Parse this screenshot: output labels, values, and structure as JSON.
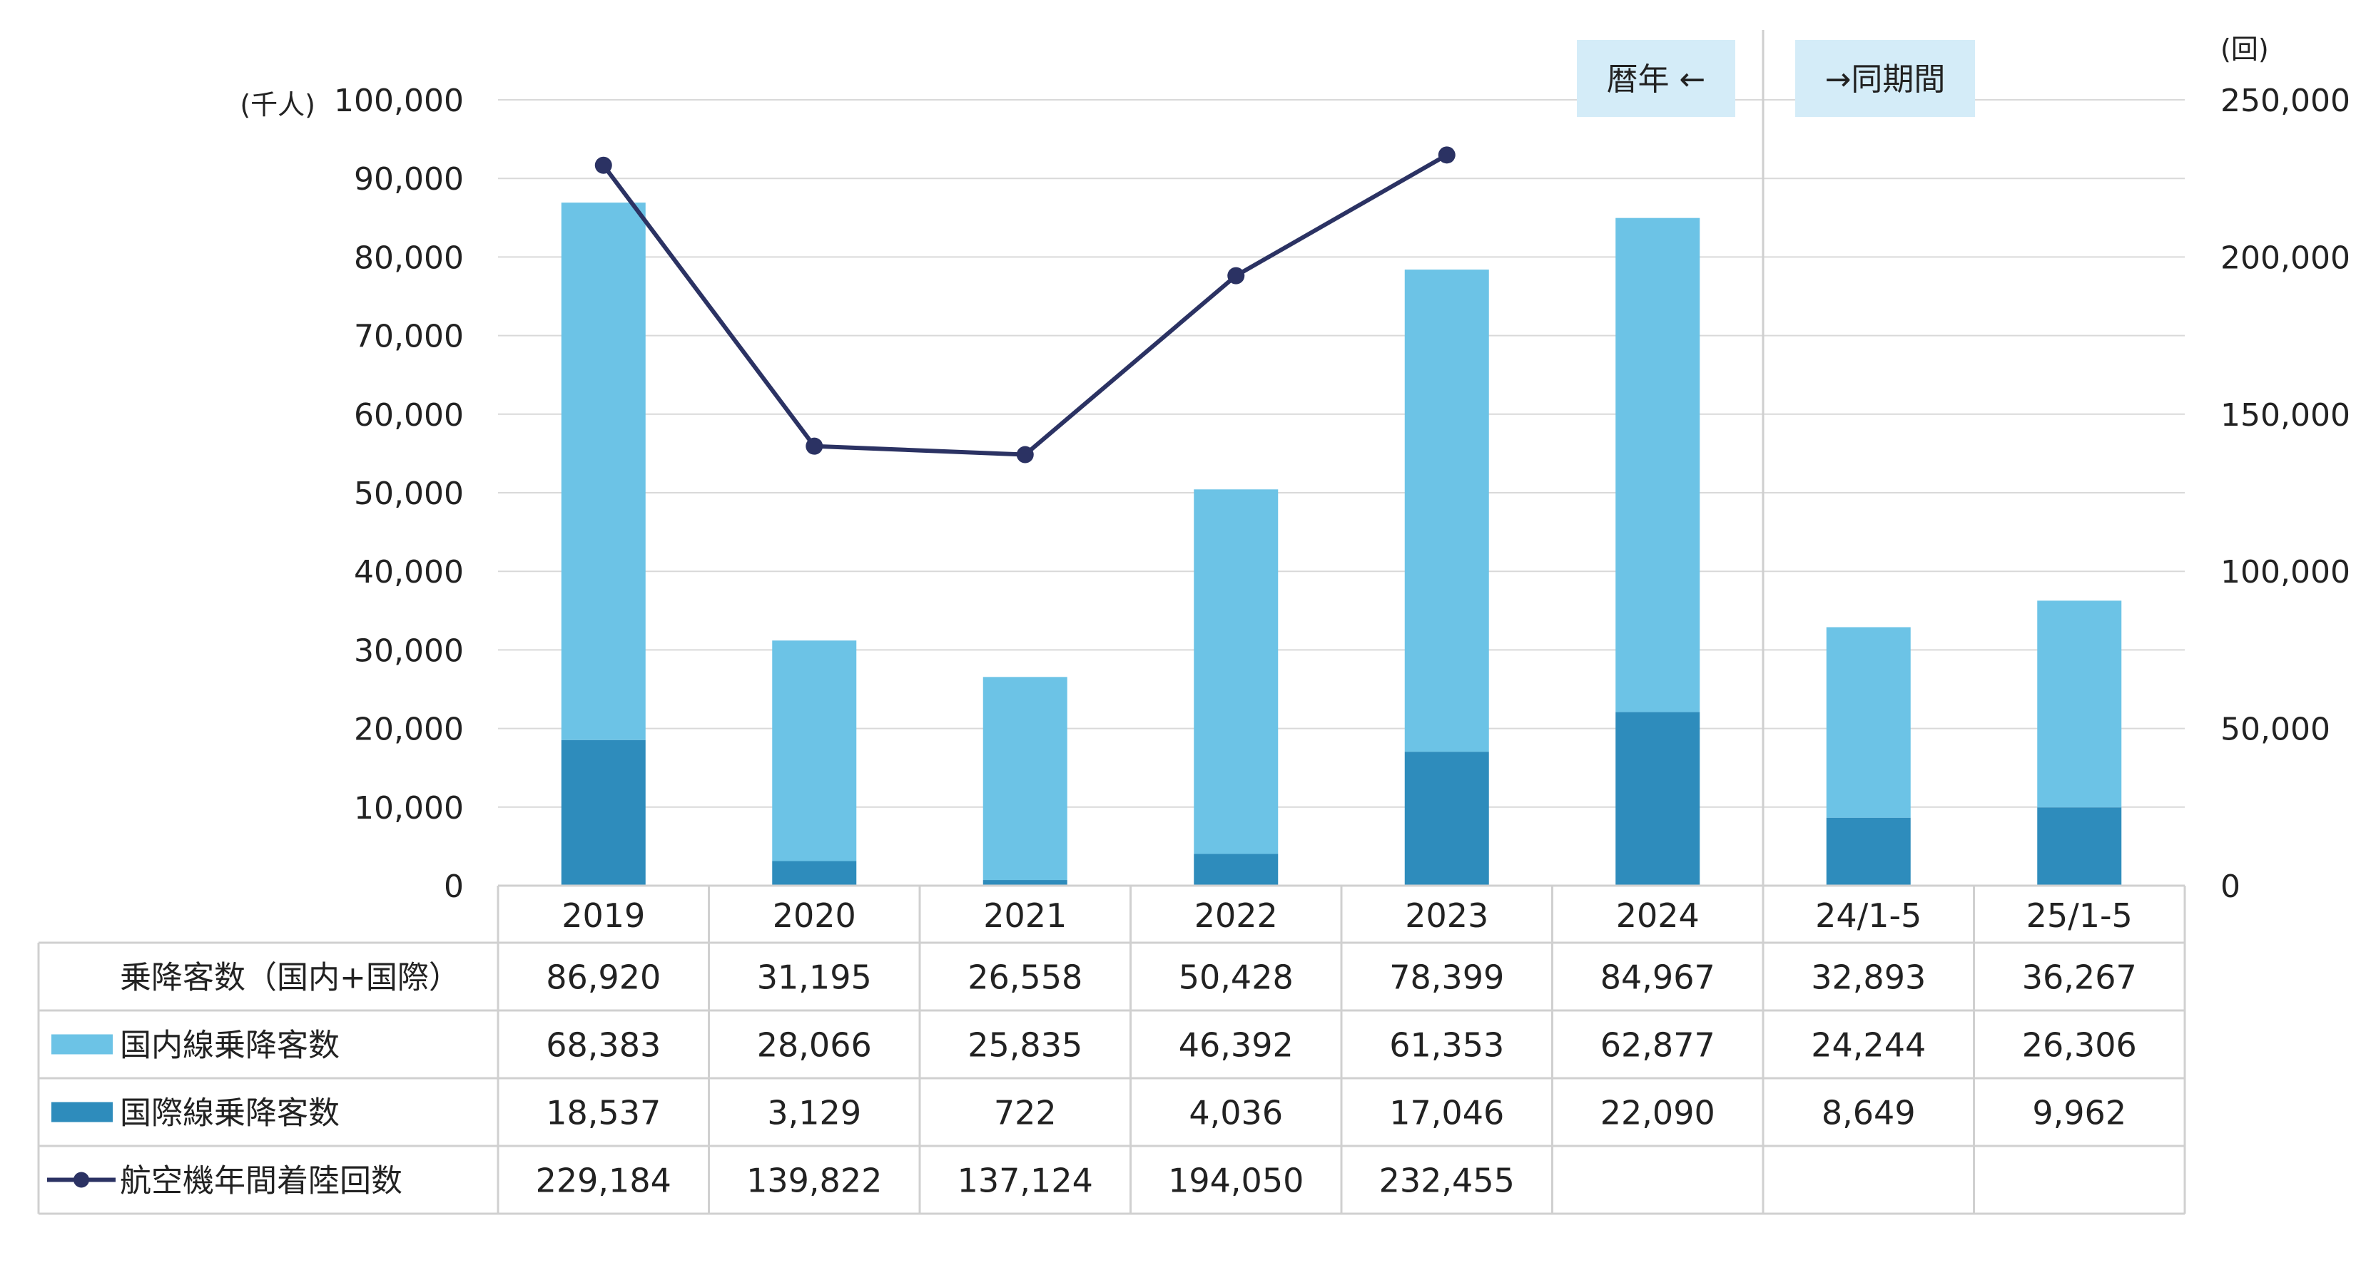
{
  "chart_data": {
    "type": "bar",
    "stacked": true,
    "categories": [
      "2019",
      "2020",
      "2021",
      "2022",
      "2023",
      "2024",
      "24/1-5",
      "25/1-5"
    ],
    "series": [
      {
        "name": "国際線乗降客数",
        "type": "bar",
        "axis": "left",
        "color": "#2e8cbc",
        "values": [
          18537,
          3129,
          722,
          4036,
          17046,
          22090,
          8649,
          9962
        ],
        "labels": [
          "18,537",
          "3,129",
          "722",
          "4,036",
          "17,046",
          "22,090",
          "8,649",
          "9,962"
        ]
      },
      {
        "name": "国内線乗降客数",
        "type": "bar",
        "axis": "left",
        "color": "#6cc3e6",
        "values": [
          68383,
          28066,
          25835,
          46392,
          61353,
          62877,
          24244,
          26306
        ],
        "labels": [
          "68,383",
          "28,066",
          "25,835",
          "46,392",
          "61,353",
          "62,877",
          "24,244",
          "26,306"
        ]
      },
      {
        "name": "航空機年間着陸回数",
        "type": "line",
        "axis": "right",
        "color": "#2b3263",
        "values": [
          229184,
          139822,
          137124,
          194050,
          232455,
          null,
          null,
          null
        ],
        "labels": [
          "229,184",
          "139,822",
          "137,124",
          "194,050",
          "232,455",
          "",
          "",
          ""
        ]
      }
    ],
    "total_row": {
      "name": "乗降客数（国内+国際）",
      "labels": [
        "86,920",
        "31,195",
        "26,558",
        "50,428",
        "78,399",
        "84,967",
        "32,893",
        "36,267"
      ]
    },
    "left_axis": {
      "unit": "(千人)",
      "min": 0,
      "max": 100000,
      "ticks": [
        0,
        10000,
        20000,
        30000,
        40000,
        50000,
        60000,
        70000,
        80000,
        90000,
        100000
      ],
      "tick_labels": [
        "0",
        "10,000",
        "20,000",
        "30,000",
        "40,000",
        "50,000",
        "60,000",
        "70,000",
        "80,000",
        "90,000",
        "100,000"
      ]
    },
    "right_axis": {
      "unit": "(回)",
      "min": 0,
      "max": 250000,
      "ticks": [
        0,
        50000,
        100000,
        150000,
        200000,
        250000
      ],
      "tick_labels": [
        "0",
        "50,000",
        "100,000",
        "150,000",
        "200,000",
        "250,000"
      ]
    },
    "annotations": {
      "calendar_year": "暦年 ←",
      "same_period": "→同期間"
    },
    "grid": true,
    "legend": "data-table"
  }
}
